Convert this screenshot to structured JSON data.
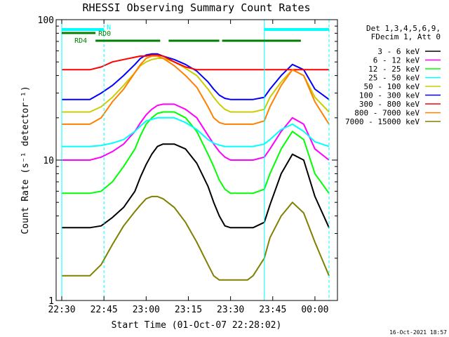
{
  "chart_data": {
    "type": "line",
    "title": "RHESSI Observing Summary Count Rates",
    "xlabel": "Start Time (01-Oct-07 22:28:02)",
    "ylabel": "Count Rate (s⁻¹ detector⁻¹)",
    "yscale": "log",
    "ylim": [
      1,
      100
    ],
    "xlim": [
      -2,
      98
    ],
    "x_units": "minutes after 22:30 UT",
    "x_ticks": [
      0,
      15,
      30,
      45,
      60,
      75,
      90
    ],
    "x_tick_labels": [
      "22:30",
      "22:45",
      "23:00",
      "23:15",
      "23:30",
      "23:45",
      "00:00"
    ],
    "y_ticks": [
      1,
      10,
      100
    ],
    "y_tick_labels": [
      "1",
      "10",
      "100"
    ],
    "grid": false,
    "legend_position": "top-right",
    "legend_header": [
      "Det 1,3,4,5,6,9,",
      "FDecim 1, Att 0"
    ],
    "footer_timestamp": "16-Oct-2021 18:57",
    "annotations": [
      {
        "text": "N",
        "color": "#00ffff"
      },
      {
        "text": "RD0",
        "color": "#008000"
      },
      {
        "text": "RD4",
        "color": "#008000"
      }
    ],
    "series": [
      {
        "name": "3 - 6 keV",
        "color": "#000000",
        "x": [
          0,
          10,
          14,
          18,
          22,
          26,
          28,
          30,
          32,
          34,
          36,
          40,
          44,
          48,
          52,
          54,
          56,
          58,
          60,
          62,
          64,
          66,
          68,
          72,
          74,
          78,
          82,
          86,
          90,
          95
        ],
        "y": [
          3.3,
          3.3,
          3.4,
          3.9,
          4.6,
          6,
          7.6,
          9.3,
          11,
          12.5,
          13,
          13,
          12,
          9.5,
          6.5,
          5,
          4,
          3.4,
          3.3,
          3.3,
          3.3,
          3.3,
          3.3,
          3.6,
          4.8,
          8,
          11,
          10,
          5.5,
          3.3
        ]
      },
      {
        "name": "6 - 12 keV",
        "color": "#ff00ff",
        "x": [
          0,
          10,
          14,
          18,
          22,
          26,
          28,
          30,
          32,
          34,
          36,
          40,
          44,
          48,
          52,
          54,
          56,
          58,
          60,
          62,
          64,
          66,
          68,
          72,
          74,
          78,
          82,
          86,
          90,
          95
        ],
        "y": [
          10,
          10,
          10.5,
          11.5,
          13,
          16,
          18.5,
          21,
          23,
          24.5,
          25,
          25,
          23,
          20,
          15,
          13,
          11.5,
          10.5,
          10,
          10,
          10,
          10,
          10,
          10.5,
          12,
          16,
          20,
          18,
          12,
          10
        ]
      },
      {
        "name": "12 - 25 keV",
        "color": "#00ff00",
        "x": [
          0,
          10,
          14,
          18,
          22,
          26,
          28,
          30,
          32,
          34,
          36,
          40,
          44,
          48,
          52,
          54,
          56,
          58,
          60,
          62,
          64,
          66,
          68,
          72,
          74,
          78,
          82,
          86,
          90,
          95
        ],
        "y": [
          5.8,
          5.8,
          6,
          7,
          9,
          12,
          15,
          18,
          20,
          21.5,
          22,
          22,
          20,
          16,
          11,
          9,
          7.2,
          6.2,
          5.8,
          5.8,
          5.8,
          5.8,
          5.8,
          6.2,
          8,
          12,
          16,
          14,
          8,
          5.8
        ]
      },
      {
        "name": "25 - 50 keV",
        "color": "#00ffff",
        "x": [
          0,
          10,
          14,
          18,
          22,
          26,
          28,
          30,
          32,
          34,
          36,
          40,
          44,
          48,
          52,
          54,
          56,
          58,
          60,
          62,
          64,
          66,
          68,
          72,
          74,
          78,
          82,
          86,
          90,
          95
        ],
        "y": [
          12.5,
          12.5,
          12.7,
          13.2,
          14,
          16,
          17.5,
          19,
          19.5,
          20,
          20,
          20,
          18.5,
          16.5,
          14,
          13.2,
          12.8,
          12.5,
          12.5,
          12.5,
          12.5,
          12.5,
          12.5,
          13,
          14,
          16.5,
          18,
          16,
          13.5,
          12.5
        ]
      },
      {
        "name": "50 - 100 keV",
        "color": "#cccc00",
        "x": [
          0,
          10,
          14,
          18,
          22,
          26,
          28,
          30,
          32,
          34,
          36,
          40,
          44,
          48,
          52,
          54,
          56,
          58,
          60,
          62,
          64,
          66,
          68,
          72,
          74,
          78,
          82,
          86,
          90,
          95
        ],
        "y": [
          22,
          22,
          24,
          28,
          34,
          42,
          47,
          50,
          52,
          53,
          53,
          50,
          45,
          40,
          32,
          28,
          25,
          23,
          22,
          22,
          22,
          22,
          22,
          23,
          28,
          36,
          44,
          40,
          28,
          22
        ]
      },
      {
        "name": "100 - 300 keV",
        "color": "#0000ff",
        "x": [
          0,
          10,
          14,
          18,
          22,
          26,
          28,
          30,
          32,
          34,
          36,
          40,
          44,
          48,
          52,
          54,
          56,
          58,
          60,
          62,
          64,
          66,
          68,
          72,
          74,
          78,
          82,
          86,
          90,
          95
        ],
        "y": [
          27,
          27,
          30,
          34,
          40,
          48,
          53,
          56,
          57,
          57,
          55,
          52,
          48,
          43,
          36,
          32,
          29,
          27.5,
          27,
          27,
          27,
          27,
          27,
          28,
          32,
          40,
          48,
          44,
          32,
          27
        ]
      },
      {
        "name": "300 - 800 keV",
        "color": "#ff0000",
        "x": [
          0,
          10,
          14,
          18,
          22,
          26,
          28,
          30,
          32,
          34,
          36,
          40,
          44,
          48,
          52,
          54,
          56,
          58,
          60,
          62,
          64,
          66,
          68,
          72,
          74,
          78,
          82,
          86,
          90,
          95
        ],
        "y": [
          44,
          44,
          46,
          50,
          52,
          54,
          55,
          55,
          56,
          56,
          55,
          50,
          46,
          44,
          44,
          44,
          44,
          44,
          44,
          44,
          44,
          44,
          44,
          44,
          44,
          44,
          44,
          44,
          44,
          44
        ]
      },
      {
        "name": "800 - 7000 keV",
        "color": "#ff8000",
        "x": [
          0,
          10,
          14,
          18,
          22,
          26,
          28,
          30,
          32,
          34,
          36,
          40,
          44,
          48,
          52,
          54,
          56,
          58,
          60,
          62,
          64,
          66,
          68,
          72,
          74,
          78,
          82,
          86,
          90,
          95
        ],
        "y": [
          18,
          18,
          20,
          26,
          32,
          42,
          48,
          53,
          55,
          55,
          53,
          47,
          40,
          33,
          24,
          20,
          18.5,
          18,
          18,
          18,
          18,
          18,
          18,
          19,
          24,
          34,
          44,
          40,
          26,
          18
        ]
      },
      {
        "name": "7000 - 15000 keV",
        "color": "#808000",
        "x": [
          0,
          10,
          14,
          18,
          22,
          26,
          28,
          30,
          32,
          34,
          36,
          40,
          44,
          48,
          52,
          54,
          56,
          58,
          60,
          62,
          64,
          66,
          68,
          72,
          74,
          78,
          82,
          86,
          90,
          95
        ],
        "y": [
          1.5,
          1.5,
          1.8,
          2.5,
          3.4,
          4.3,
          4.8,
          5.3,
          5.5,
          5.5,
          5.3,
          4.6,
          3.6,
          2.6,
          1.8,
          1.5,
          1.4,
          1.4,
          1.4,
          1.4,
          1.4,
          1.4,
          1.5,
          2,
          2.8,
          4,
          5,
          4.2,
          2.6,
          1.5
        ]
      }
    ],
    "flag_bars": [
      {
        "label": "N",
        "color": "#00ffff",
        "x_ranges": [
          [
            0,
            15
          ],
          [
            72,
            95
          ]
        ]
      },
      {
        "label": "RD0",
        "color": "#008000",
        "x_ranges": [
          [
            0,
            12
          ]
        ]
      },
      {
        "label": "RD4",
        "color": "#008000",
        "x_ranges": [
          [
            12,
            35
          ],
          [
            38,
            56
          ],
          [
            57,
            85
          ]
        ]
      }
    ],
    "vertical_markers": [
      {
        "x": 0,
        "color": "#00ffff",
        "style": "solid"
      },
      {
        "x": 15,
        "color": "#00ffff",
        "style": "dashed"
      },
      {
        "x": 72,
        "color": "#00ffff",
        "style": "solid"
      },
      {
        "x": 95,
        "color": "#00ffff",
        "style": "dashed"
      }
    ]
  }
}
